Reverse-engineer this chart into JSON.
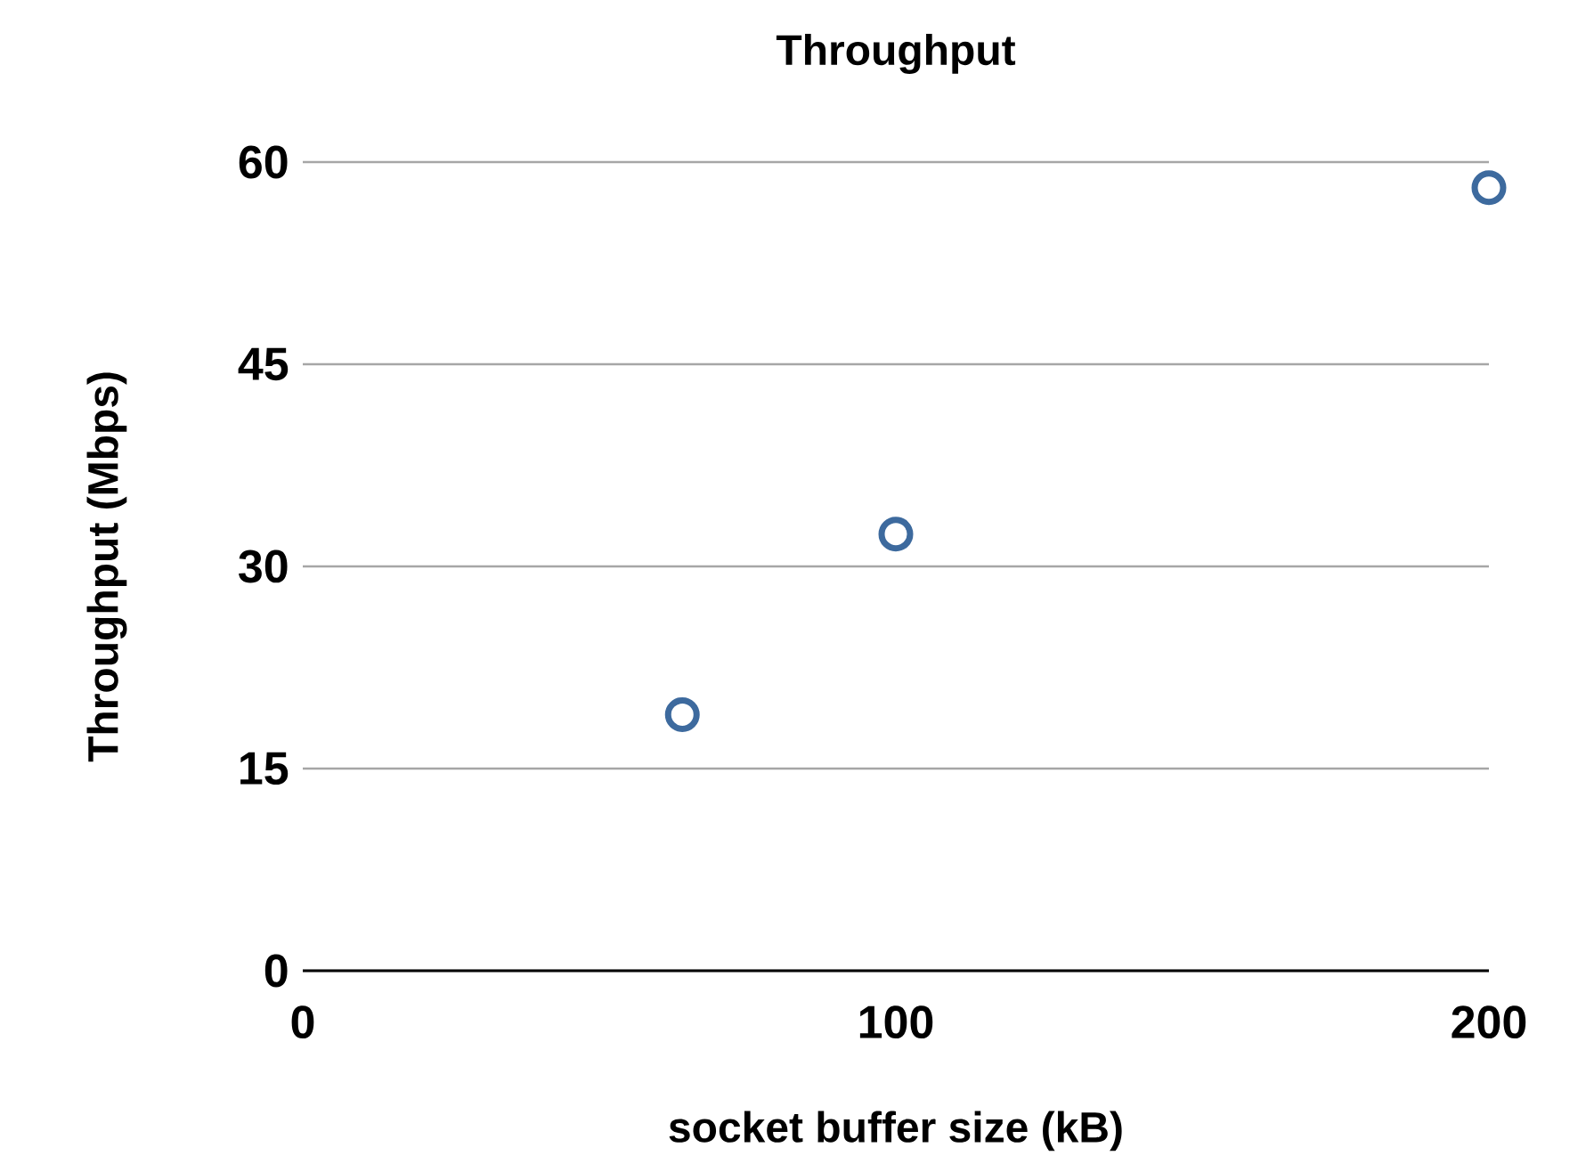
{
  "chart_data": {
    "type": "scatter",
    "title": "Throughput",
    "xlabel": "socket buffer size (kB)",
    "ylabel": "Throughput (Mbps)",
    "x": [
      64,
      100,
      200
    ],
    "series": [
      {
        "color": "#3d6a9e",
        "values": [
          19.0,
          32.4,
          58.1
        ]
      }
    ],
    "xlim": [
      0,
      200
    ],
    "xticks": [
      0,
      100,
      200
    ],
    "ylim": [
      0,
      60
    ],
    "yticks": [
      0,
      15,
      30,
      45,
      60
    ],
    "grid": "y",
    "marker": "circle"
  }
}
